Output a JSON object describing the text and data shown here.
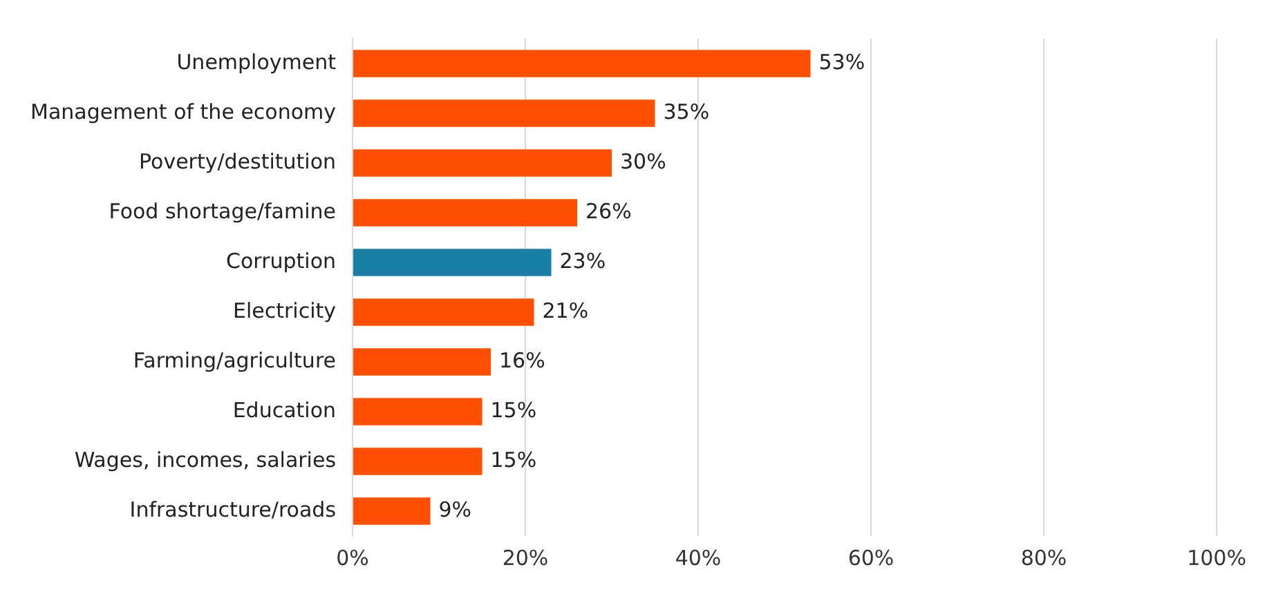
{
  "chart_data": {
    "type": "bar",
    "orientation": "horizontal",
    "categories": [
      "Unemployment",
      "Management of the economy",
      "Poverty/destitution",
      "Food shortage/famine",
      "Corruption",
      "Electricity",
      "Farming/agriculture",
      "Education",
      "Wages, incomes, salaries",
      "Infrastructure/roads"
    ],
    "values": [
      53,
      35,
      30,
      26,
      23,
      21,
      16,
      15,
      15,
      9
    ],
    "colors": [
      "#fe4f00",
      "#fe4f00",
      "#fe4f00",
      "#fe4f00",
      "#1880a6",
      "#fe4f00",
      "#fe4f00",
      "#fe4f00",
      "#fe4f00",
      "#fe4f00"
    ],
    "value_labels": [
      "53%",
      "35%",
      "30%",
      "26%",
      "23%",
      "21%",
      "16%",
      "15%",
      "15%",
      "9%"
    ],
    "xlim": [
      0,
      100
    ],
    "xticks": [
      {
        "value": 0,
        "label": "0%"
      },
      {
        "value": 20,
        "label": "20%"
      },
      {
        "value": 40,
        "label": "40%"
      },
      {
        "value": 60,
        "label": "60%"
      },
      {
        "value": 80,
        "label": "80%"
      },
      {
        "value": 100,
        "label": "100%"
      }
    ],
    "grid": "x",
    "legend": false
  }
}
